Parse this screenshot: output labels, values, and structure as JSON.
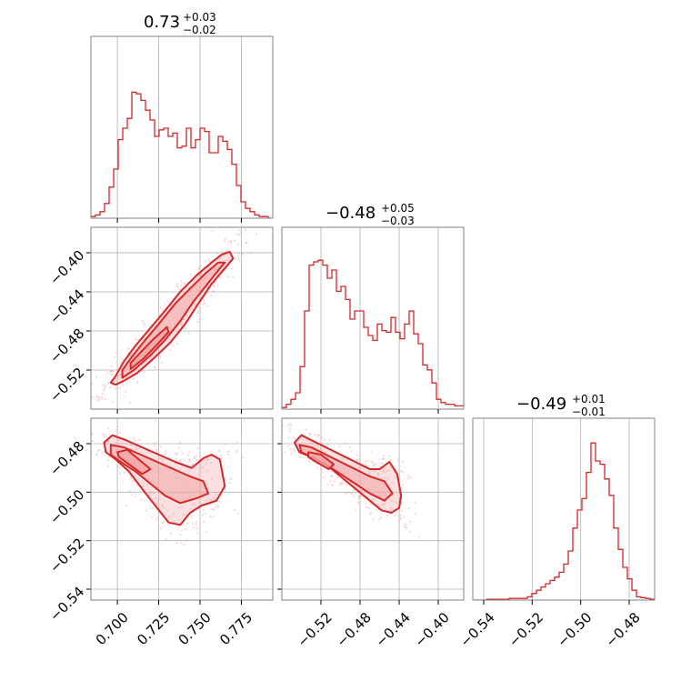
{
  "chart_data": {
    "type": "corner",
    "colors": {
      "line": "#d62728",
      "fill": "#f2a5a6",
      "grid": "#b0b0b0",
      "frame": "#808080"
    },
    "titles": [
      {
        "value": "0.73",
        "plus": "+0.03",
        "minus": "−0.02"
      },
      {
        "value": "−0.48",
        "plus": "+0.05",
        "minus": "−0.03"
      },
      {
        "value": "−0.49",
        "plus": "+0.01",
        "minus": "−0.01"
      }
    ],
    "parameters": [
      {
        "range": [
          0.684,
          0.794
        ],
        "ticks": [
          0.7,
          0.725,
          0.75,
          0.775
        ],
        "tick_labels": [
          "0.700",
          "0.725",
          "0.750",
          "0.775"
        ]
      },
      {
        "range": [
          -0.56,
          -0.374
        ],
        "ticks": [
          -0.52,
          -0.48,
          -0.44,
          -0.4
        ],
        "tick_labels": [
          "−0.52",
          "−0.48",
          "−0.44",
          "−0.40"
        ]
      },
      {
        "range": [
          -0.5445,
          -0.4695
        ],
        "ticks": [
          -0.54,
          -0.52,
          -0.5,
          -0.48
        ],
        "tick_labels": [
          "−0.54",
          "−0.52",
          "−0.50",
          "−0.48"
        ]
      }
    ],
    "histograms": [
      {
        "param": 0,
        "bins": 40,
        "counts": [
          0.01,
          0.02,
          0.04,
          0.09,
          0.19,
          0.3,
          0.48,
          0.55,
          0.61,
          0.77,
          0.76,
          0.72,
          0.66,
          0.6,
          0.5,
          0.54,
          0.55,
          0.5,
          0.52,
          0.43,
          0.44,
          0.55,
          0.43,
          0.48,
          0.55,
          0.53,
          0.4,
          0.4,
          0.5,
          0.47,
          0.42,
          0.33,
          0.2,
          0.1,
          0.06,
          0.04,
          0.02,
          0.01,
          0.01,
          0.0
        ]
      },
      {
        "param": 1,
        "bins": 40,
        "counts": [
          0.01,
          0.03,
          0.06,
          0.1,
          0.26,
          0.6,
          0.88,
          0.9,
          0.91,
          0.88,
          0.8,
          0.85,
          0.72,
          0.75,
          0.67,
          0.55,
          0.6,
          0.6,
          0.5,
          0.45,
          0.42,
          0.52,
          0.48,
          0.47,
          0.56,
          0.47,
          0.43,
          0.52,
          0.6,
          0.46,
          0.4,
          0.27,
          0.24,
          0.16,
          0.06,
          0.04,
          0.03,
          0.03,
          0.02,
          0.02
        ]
      },
      {
        "param": 2,
        "bins": 40,
        "counts": [
          0.0,
          0.0,
          0.0,
          0.005,
          0.005,
          0.005,
          0.005,
          0.005,
          0.01,
          0.01,
          0.01,
          0.01,
          0.02,
          0.04,
          0.06,
          0.08,
          0.1,
          0.12,
          0.14,
          0.17,
          0.22,
          0.3,
          0.44,
          0.55,
          0.62,
          0.78,
          0.96,
          0.85,
          0.83,
          0.74,
          0.64,
          0.44,
          0.31,
          0.2,
          0.13,
          0.06,
          0.02,
          0.015,
          0.01,
          0.005
        ]
      }
    ],
    "pairs": [
      {
        "x_param": 0,
        "y_param": 1,
        "levels": [
          {
            "name": "outer",
            "polygon": [
              [
                0.699,
                -0.535
              ],
              [
                0.704,
                -0.531
              ],
              [
                0.712,
                -0.523
              ],
              [
                0.722,
                -0.508
              ],
              [
                0.732,
                -0.492
              ],
              [
                0.741,
                -0.473
              ],
              [
                0.749,
                -0.452
              ],
              [
                0.757,
                -0.432
              ],
              [
                0.764,
                -0.418
              ],
              [
                0.77,
                -0.406
              ],
              [
                0.768,
                -0.399
              ],
              [
                0.763,
                -0.402
              ],
              [
                0.757,
                -0.41
              ],
              [
                0.748,
                -0.423
              ],
              [
                0.738,
                -0.44
              ],
              [
                0.729,
                -0.459
              ],
              [
                0.72,
                -0.477
              ],
              [
                0.711,
                -0.495
              ],
              [
                0.704,
                -0.511
              ],
              [
                0.699,
                -0.526
              ],
              [
                0.696,
                -0.533
              ]
            ]
          },
          {
            "name": "middle",
            "polygon": [
              [
                0.703,
                -0.528
              ],
              [
                0.71,
                -0.52
              ],
              [
                0.72,
                -0.505
              ],
              [
                0.729,
                -0.489
              ],
              [
                0.738,
                -0.47
              ],
              [
                0.746,
                -0.45
              ],
              [
                0.754,
                -0.433
              ],
              [
                0.761,
                -0.418
              ],
              [
                0.765,
                -0.41
              ],
              [
                0.761,
                -0.41
              ],
              [
                0.754,
                -0.42
              ],
              [
                0.745,
                -0.435
              ],
              [
                0.735,
                -0.452
              ],
              [
                0.726,
                -0.471
              ],
              [
                0.717,
                -0.489
              ],
              [
                0.709,
                -0.506
              ],
              [
                0.703,
                -0.52
              ]
            ]
          },
          {
            "name": "inner",
            "polygon": [
              [
                0.708,
                -0.519
              ],
              [
                0.716,
                -0.508
              ],
              [
                0.724,
                -0.494
              ],
              [
                0.731,
                -0.481
              ],
              [
                0.73,
                -0.476
              ],
              [
                0.722,
                -0.488
              ],
              [
                0.714,
                -0.502
              ],
              [
                0.708,
                -0.513
              ]
            ]
          }
        ]
      },
      {
        "x_param": 0,
        "y_param": 2,
        "levels": [
          {
            "name": "outer",
            "polygon": [
              [
                0.692,
                -0.4795
              ],
              [
                0.697,
                -0.4765
              ],
              [
                0.705,
                -0.4785
              ],
              [
                0.715,
                -0.4815
              ],
              [
                0.725,
                -0.4845
              ],
              [
                0.735,
                -0.4875
              ],
              [
                0.745,
                -0.49
              ],
              [
                0.752,
                -0.486
              ],
              [
                0.757,
                -0.4845
              ],
              [
                0.762,
                -0.4865
              ],
              [
                0.765,
                -0.4975
              ],
              [
                0.76,
                -0.5035
              ],
              [
                0.751,
                -0.5055
              ],
              [
                0.744,
                -0.5085
              ],
              [
                0.738,
                -0.5135
              ],
              [
                0.731,
                -0.5125
              ],
              [
                0.724,
                -0.5065
              ],
              [
                0.716,
                -0.4995
              ],
              [
                0.707,
                -0.4915
              ],
              [
                0.699,
                -0.4865
              ],
              [
                0.693,
                -0.4835
              ]
            ]
          },
          {
            "name": "middle",
            "polygon": [
              [
                0.696,
                -0.4805
              ],
              [
                0.704,
                -0.4815
              ],
              [
                0.714,
                -0.4845
              ],
              [
                0.724,
                -0.4875
              ],
              [
                0.734,
                -0.4905
              ],
              [
                0.744,
                -0.4935
              ],
              [
                0.752,
                -0.4955
              ],
              [
                0.755,
                -0.5005
              ],
              [
                0.748,
                -0.5025
              ],
              [
                0.738,
                -0.5045
              ],
              [
                0.729,
                -0.5015
              ],
              [
                0.72,
                -0.4965
              ],
              [
                0.711,
                -0.4915
              ],
              [
                0.702,
                -0.4875
              ],
              [
                0.696,
                -0.4845
              ]
            ]
          },
          {
            "name": "inner",
            "polygon": [
              [
                0.7,
                -0.4835
              ],
              [
                0.706,
                -0.4825
              ],
              [
                0.713,
                -0.4865
              ],
              [
                0.72,
                -0.4905
              ],
              [
                0.715,
                -0.4925
              ],
              [
                0.707,
                -0.4885
              ],
              [
                0.701,
                -0.4855
              ]
            ]
          }
        ]
      },
      {
        "x_param": 1,
        "y_param": 2,
        "levels": [
          {
            "name": "outer",
            "polygon": [
              [
                -0.547,
                -0.4795
              ],
              [
                -0.54,
                -0.4765
              ],
              [
                -0.53,
                -0.4785
              ],
              [
                -0.515,
                -0.4815
              ],
              [
                -0.5,
                -0.4845
              ],
              [
                -0.485,
                -0.4875
              ],
              [
                -0.47,
                -0.4905
              ],
              [
                -0.46,
                -0.4905
              ],
              [
                -0.45,
                -0.4875
              ],
              [
                -0.442,
                -0.4925
              ],
              [
                -0.438,
                -0.5015
              ],
              [
                -0.44,
                -0.5065
              ],
              [
                -0.448,
                -0.5085
              ],
              [
                -0.458,
                -0.5075
              ],
              [
                -0.47,
                -0.5035
              ],
              [
                -0.485,
                -0.4985
              ],
              [
                -0.5,
                -0.4935
              ],
              [
                -0.515,
                -0.4885
              ],
              [
                -0.53,
                -0.4855
              ],
              [
                -0.542,
                -0.4835
              ]
            ]
          },
          {
            "name": "middle",
            "polygon": [
              [
                -0.542,
                -0.4805
              ],
              [
                -0.53,
                -0.4815
              ],
              [
                -0.515,
                -0.4845
              ],
              [
                -0.5,
                -0.4875
              ],
              [
                -0.485,
                -0.4905
              ],
              [
                -0.47,
                -0.4935
              ],
              [
                -0.455,
                -0.4955
              ],
              [
                -0.447,
                -0.5005
              ],
              [
                -0.455,
                -0.5035
              ],
              [
                -0.47,
                -0.5005
              ],
              [
                -0.485,
                -0.4965
              ],
              [
                -0.5,
                -0.4925
              ],
              [
                -0.515,
                -0.4885
              ],
              [
                -0.53,
                -0.4855
              ],
              [
                -0.54,
                -0.4835
              ]
            ]
          },
          {
            "name": "inner",
            "polygon": [
              [
                -0.533,
                -0.4835
              ],
              [
                -0.52,
                -0.4845
              ],
              [
                -0.507,
                -0.4885
              ],
              [
                -0.512,
                -0.4905
              ],
              [
                -0.525,
                -0.4875
              ],
              [
                -0.533,
                -0.4855
              ]
            ]
          }
        ]
      }
    ],
    "panels": [
      {
        "kind": "hist",
        "row": 0,
        "col": 0,
        "x_param": 0,
        "tick_labels_x": false,
        "tick_labels_y": false
      },
      {
        "kind": "pair",
        "row": 1,
        "col": 0,
        "x_param": 0,
        "y_param": 1,
        "tick_labels_x": false,
        "tick_labels_y": true
      },
      {
        "kind": "hist",
        "row": 1,
        "col": 1,
        "x_param": 1,
        "tick_labels_x": false,
        "tick_labels_y": false
      },
      {
        "kind": "pair",
        "row": 2,
        "col": 0,
        "x_param": 0,
        "y_param": 2,
        "tick_labels_x": true,
        "tick_labels_y": true
      },
      {
        "kind": "pair",
        "row": 2,
        "col": 1,
        "x_param": 1,
        "y_param": 2,
        "tick_labels_x": true,
        "tick_labels_y": false
      },
      {
        "kind": "hist",
        "row": 2,
        "col": 2,
        "x_param": 2,
        "tick_labels_x": true,
        "tick_labels_y": false
      }
    ],
    "grid": true
  }
}
